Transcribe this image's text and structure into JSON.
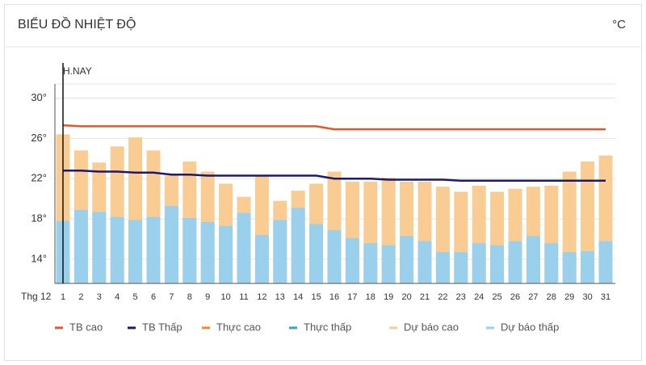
{
  "chart_data": {
    "type": "bar",
    "title": "BIỂU ĐỒ NHIỆT ĐỘ",
    "unit": "°C",
    "x_label": "Thg 12",
    "annotations": [
      {
        "x": "1",
        "text": "H.NAY"
      }
    ],
    "categories": [
      "1",
      "2",
      "3",
      "4",
      "5",
      "6",
      "7",
      "8",
      "9",
      "10",
      "11",
      "12",
      "13",
      "14",
      "15",
      "16",
      "17",
      "18",
      "19",
      "20",
      "21",
      "22",
      "23",
      "24",
      "25",
      "26",
      "27",
      "28",
      "29",
      "30",
      "31"
    ],
    "ylim": [
      11.6,
      31.4
    ],
    "yticks": [
      {
        "value": 14,
        "label": "14°"
      },
      {
        "value": 18,
        "label": "18°"
      },
      {
        "value": 22,
        "label": "22°"
      },
      {
        "value": 26,
        "label": "26°"
      },
      {
        "value": 30,
        "label": "30°"
      }
    ],
    "grid": true,
    "series": [
      {
        "name": "TB cao",
        "type": "line",
        "color": "#e0592a",
        "values": [
          27.3,
          27.2,
          27.2,
          27.2,
          27.2,
          27.2,
          27.2,
          27.2,
          27.2,
          27.2,
          27.2,
          27.2,
          27.2,
          27.2,
          27.2,
          26.9,
          26.9,
          26.9,
          26.9,
          26.9,
          26.9,
          26.9,
          26.9,
          26.9,
          26.9,
          26.9,
          26.9,
          26.9,
          26.9,
          26.9,
          26.9
        ]
      },
      {
        "name": "TB Thấp",
        "type": "line",
        "color": "#1c1a6b",
        "values": [
          22.8,
          22.8,
          22.7,
          22.7,
          22.6,
          22.6,
          22.4,
          22.4,
          22.3,
          22.3,
          22.3,
          22.3,
          22.3,
          22.3,
          22.3,
          22.0,
          22.0,
          22.0,
          21.9,
          21.9,
          21.9,
          21.9,
          21.8,
          21.8,
          21.8,
          21.8,
          21.8,
          21.8,
          21.8,
          21.8,
          21.8
        ]
      },
      {
        "name": "Thực cao",
        "type": "bar",
        "color": "#f08a2c",
        "values": [
          null,
          null,
          null,
          null,
          null,
          null,
          null,
          null,
          null,
          null,
          null,
          null,
          null,
          null,
          null,
          null,
          null,
          null,
          null,
          null,
          null,
          null,
          null,
          null,
          null,
          null,
          null,
          null,
          null,
          null,
          null
        ]
      },
      {
        "name": "Thực thấp",
        "type": "bar",
        "color": "#3a9fd6",
        "values": [
          null,
          null,
          null,
          null,
          null,
          null,
          null,
          null,
          null,
          null,
          null,
          null,
          null,
          null,
          null,
          null,
          null,
          null,
          null,
          null,
          null,
          null,
          null,
          null,
          null,
          null,
          null,
          null,
          null,
          null,
          null
        ]
      },
      {
        "name": "Dự báo cao",
        "type": "bar",
        "color": "#f9cc94",
        "values": [
          26.4,
          24.8,
          23.6,
          25.2,
          26.1,
          24.8,
          22.3,
          23.7,
          22.7,
          21.5,
          20.2,
          22.3,
          19.8,
          20.8,
          21.5,
          22.7,
          21.7,
          21.7,
          22.1,
          21.7,
          21.7,
          21.2,
          20.7,
          21.3,
          20.7,
          21.0,
          21.2,
          21.3,
          22.7,
          23.7,
          24.3
        ]
      },
      {
        "name": "Dự báo thấp",
        "type": "bar",
        "color": "#9ad0ec",
        "values": [
          17.8,
          18.9,
          18.7,
          18.2,
          17.9,
          18.2,
          19.3,
          18.1,
          17.7,
          17.3,
          18.6,
          16.4,
          17.9,
          19.1,
          17.5,
          16.9,
          16.1,
          15.6,
          15.4,
          16.3,
          15.8,
          14.7,
          14.7,
          15.6,
          15.4,
          15.8,
          16.3,
          15.6,
          14.7,
          14.8,
          15.8
        ]
      }
    ]
  }
}
